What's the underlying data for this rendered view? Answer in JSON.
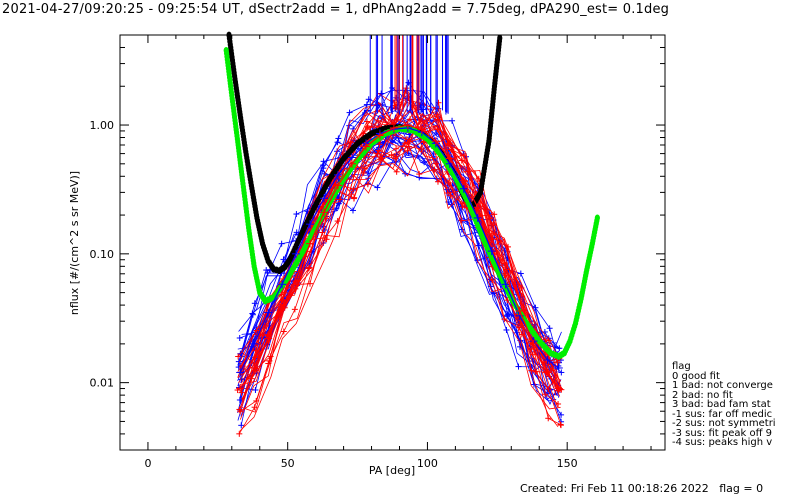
{
  "title": "2021-04-27/09:20:25 - 09:25:54 UT, dSectr2add = 1, dPhAng2add = 7.75deg, dPA290_est=    0.1deg",
  "footer": {
    "created": "Created: Fri Feb 11 00:18:26 2022",
    "flag": "flag = 0"
  },
  "legend": {
    "heading": "flag",
    "items": [
      " 0 good fit",
      " 1 bad: not converge",
      " 2 bad: no fit",
      " 3 bad: bad fam stat",
      "-1 sus: far off medic",
      "-2 sus: not symmetri",
      "-3 sus: fit peak off 9",
      "-4 sus: peaks high v"
    ]
  },
  "colors": {
    "black_fit": "#000000",
    "green_fit": "#00ee00",
    "blue_data": "#0000ff",
    "red_data": "#ff0000"
  },
  "chart_data": {
    "type": "line",
    "xlabel": "PA [deg]",
    "ylabel": "nflux [#/(cm^2 s sr MeV)]",
    "xlim": [
      -10,
      185
    ],
    "ylim": [
      0.003,
      5.0
    ],
    "yscale": "log",
    "xticks": [
      0,
      50,
      100,
      150
    ],
    "xtick_labels": [
      "0",
      "50",
      "100",
      "150"
    ],
    "yticks": [
      0.01,
      0.1,
      1.0
    ],
    "ytick_labels": [
      "0.01",
      "0.10",
      "1.00"
    ],
    "series": [
      {
        "color": "#000000",
        "style": "thick-dotted",
        "x": [
          29,
          31,
          33,
          35,
          37,
          39,
          41,
          43,
          45,
          47,
          49,
          51,
          53,
          56,
          60,
          65,
          70,
          75,
          80,
          85,
          90,
          95,
          100,
          105,
          110,
          113,
          116,
          119,
          122,
          124,
          126
        ],
        "y": [
          5.0,
          2.4,
          1.2,
          0.62,
          0.34,
          0.19,
          0.12,
          0.088,
          0.076,
          0.074,
          0.079,
          0.092,
          0.115,
          0.16,
          0.24,
          0.38,
          0.55,
          0.72,
          0.86,
          0.94,
          0.96,
          0.92,
          0.8,
          0.6,
          0.4,
          0.28,
          0.23,
          0.3,
          0.75,
          2.0,
          5.0
        ]
      },
      {
        "color": "#00ee00",
        "style": "thick-dotted",
        "x": [
          28,
          30,
          32,
          34,
          36,
          38,
          40,
          42,
          45,
          50,
          55,
          60,
          65,
          70,
          75,
          80,
          85,
          90,
          95,
          100,
          105,
          110,
          115,
          120,
          125,
          130,
          135,
          140,
          144,
          147,
          149,
          151,
          153,
          155,
          157,
          159,
          161
        ],
        "y": [
          3.8,
          1.7,
          0.78,
          0.35,
          0.16,
          0.08,
          0.05,
          0.043,
          0.046,
          0.065,
          0.1,
          0.16,
          0.25,
          0.38,
          0.54,
          0.72,
          0.86,
          0.94,
          0.91,
          0.78,
          0.58,
          0.39,
          0.24,
          0.13,
          0.075,
          0.045,
          0.03,
          0.021,
          0.017,
          0.016,
          0.017,
          0.021,
          0.029,
          0.045,
          0.075,
          0.12,
          0.2
        ]
      },
      {
        "color": "#0000ff",
        "style": "crosses",
        "x": [
          33,
          38,
          43,
          48,
          53,
          58,
          63,
          68,
          73,
          78,
          83,
          88,
          93,
          98,
          103,
          108,
          113,
          118,
          123,
          128,
          133,
          138,
          143,
          147
        ],
        "y": [
          0.012,
          0.02,
          0.035,
          0.058,
          0.1,
          0.17,
          0.27,
          0.41,
          0.56,
          0.72,
          0.86,
          0.93,
          0.95,
          0.88,
          0.72,
          0.5,
          0.32,
          0.19,
          0.105,
          0.058,
          0.033,
          0.021,
          0.015,
          0.013
        ]
      },
      {
        "color": "#ff0000",
        "style": "crosses",
        "x": [
          33,
          38,
          43,
          48,
          53,
          58,
          63,
          68,
          73,
          78,
          83,
          88,
          93,
          98,
          103,
          108,
          113,
          118,
          123,
          128,
          133,
          138,
          143,
          147
        ],
        "y": [
          0.009,
          0.013,
          0.022,
          0.038,
          0.066,
          0.12,
          0.21,
          0.34,
          0.5,
          0.68,
          0.83,
          0.95,
          1.0,
          0.92,
          0.75,
          0.55,
          0.37,
          0.23,
          0.13,
          0.07,
          0.036,
          0.02,
          0.012,
          0.009
        ]
      }
    ]
  }
}
